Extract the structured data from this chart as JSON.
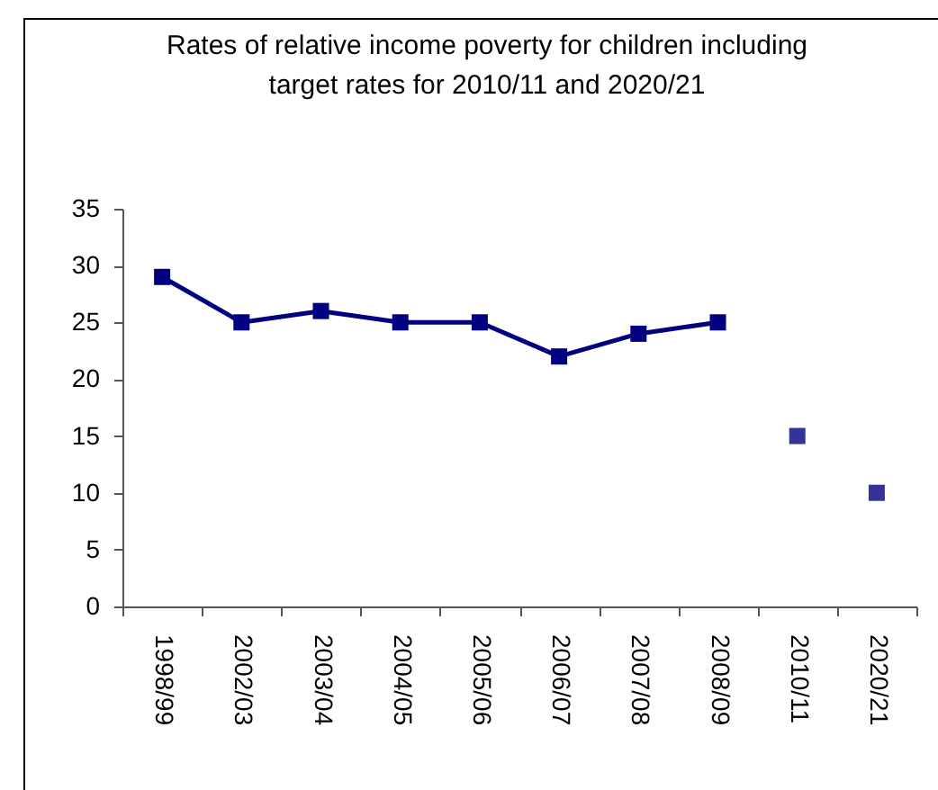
{
  "chart_data": {
    "type": "line",
    "title": "Rates of relative income poverty for children including target rates for 2010/11 and 2020/21",
    "categories": [
      "1998/99",
      "2002/03",
      "2003/04",
      "2004/05",
      "2005/06",
      "2006/07",
      "2007/08",
      "2008/09",
      "2010/11",
      "2020/21"
    ],
    "series": [
      {
        "color": "#000080",
        "values": [
          29,
          25,
          26,
          25,
          25,
          22,
          24,
          25,
          null,
          null
        ]
      },
      {
        "type": "scatter",
        "color": "#333399",
        "values": [
          null,
          null,
          null,
          null,
          null,
          null,
          null,
          null,
          15,
          10
        ]
      }
    ],
    "marker": "square",
    "line_style": "solid",
    "ylim": [
      0,
      35
    ],
    "yticks": [
      0,
      5,
      10,
      15,
      20,
      25,
      30,
      35
    ],
    "grid": false
  }
}
